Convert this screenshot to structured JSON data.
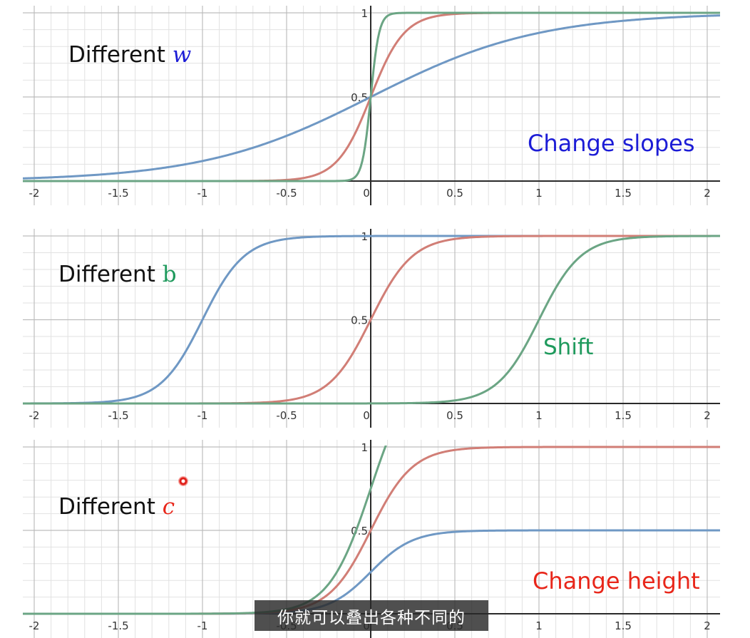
{
  "colors": {
    "blue": "#6f98c4",
    "red": "#d17e76",
    "green": "#6ba584",
    "text_blue": "#1c1cd6",
    "text_green": "#1f9a5d",
    "text_red": "#e8261a",
    "grid_major": "#bdbdbd",
    "grid_minor": "#e2e2e2",
    "axis": "#2a2a2a"
  },
  "subtitle": "你就可以叠出各种不同的",
  "chart_data": [
    {
      "type": "line",
      "xlim": [
        -2.05,
        2.05
      ],
      "ylim": [
        0,
        1
      ],
      "grid": true,
      "x_ticks": [
        "-2",
        "-1.5",
        "-1",
        "-0.5",
        "0",
        "0.5",
        "1",
        "1.5",
        "2"
      ],
      "y_ticks": [
        "0.5",
        "1"
      ],
      "annotation_label": "Different",
      "annotation_var": "w",
      "note": "Change slopes",
      "series": [
        {
          "color": "blue",
          "function": "sigmoid",
          "w": 2,
          "b": 0,
          "c": 1
        },
        {
          "color": "red",
          "function": "sigmoid",
          "w": 10,
          "b": 0,
          "c": 1
        },
        {
          "color": "green",
          "function": "sigmoid",
          "w": 40,
          "b": 0,
          "c": 1
        }
      ]
    },
    {
      "type": "line",
      "xlim": [
        -2.05,
        2.05
      ],
      "ylim": [
        0,
        1
      ],
      "grid": true,
      "x_ticks": [
        "-2",
        "-1.5",
        "-1",
        "-0.5",
        "0",
        "0.5",
        "1",
        "1.5",
        "2"
      ],
      "y_ticks": [
        "0.5",
        "1"
      ],
      "annotation_label": "Different",
      "annotation_var": "b",
      "note": "Shift",
      "series": [
        {
          "color": "blue",
          "function": "sigmoid",
          "w": 8,
          "b": 8,
          "c": 1
        },
        {
          "color": "red",
          "function": "sigmoid",
          "w": 8,
          "b": 0,
          "c": 1
        },
        {
          "color": "green",
          "function": "sigmoid",
          "w": 8,
          "b": -8,
          "c": 1
        }
      ]
    },
    {
      "type": "line",
      "xlim": [
        -2.05,
        2.05
      ],
      "ylim": [
        0,
        1
      ],
      "grid": true,
      "x_ticks": [
        "-2",
        "-1.5",
        "-1",
        "-0.5",
        "0",
        "0.5",
        "1",
        "1.5",
        "2"
      ],
      "y_ticks": [
        "0.5",
        "1"
      ],
      "annotation_label": "Different",
      "annotation_var": "c",
      "note": "Change height",
      "series": [
        {
          "color": "blue",
          "function": "sigmoid",
          "w": 8,
          "b": 0,
          "c": 0.5
        },
        {
          "color": "red",
          "function": "sigmoid",
          "w": 8,
          "b": 0,
          "c": 1
        },
        {
          "color": "green",
          "function": "sigmoid",
          "w": 8,
          "b": 0,
          "c": 1.5
        }
      ]
    }
  ]
}
